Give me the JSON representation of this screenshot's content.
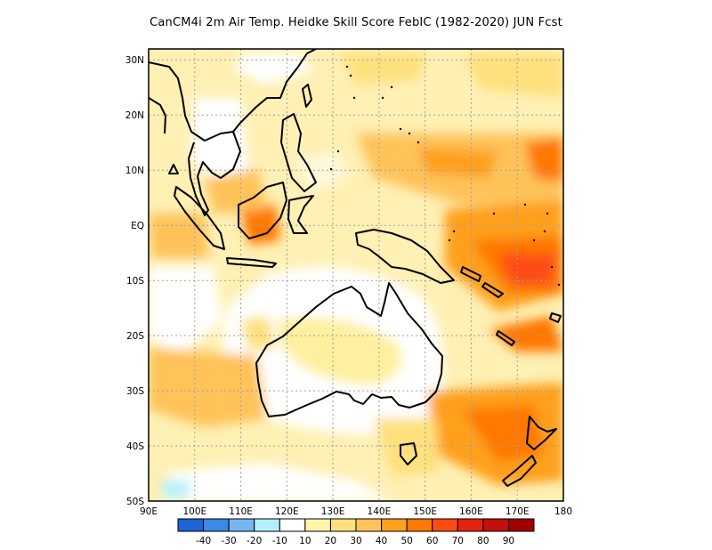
{
  "title": "CanCM4i  2m Air Temp. Heidke Skill Score FebIC (1982-2020) JUN Fcst",
  "map": {
    "lat_labels": [
      "30N",
      "20N",
      "10N",
      "EQ",
      "10S",
      "20S",
      "30S",
      "40S",
      "50S"
    ],
    "lon_labels": [
      "90E",
      "100E",
      "110E",
      "120E",
      "130E",
      "140E",
      "150E",
      "160E",
      "170E",
      "180"
    ],
    "lat_range": [
      -50,
      32
    ],
    "lon_range": [
      90,
      180
    ],
    "grid": "dotted",
    "coastline_color": "#000000"
  },
  "colorbar": {
    "labels": [
      "-40",
      "-30",
      "-20",
      "-10",
      "10",
      "20",
      "30",
      "40",
      "50",
      "60",
      "70",
      "80",
      "90"
    ],
    "colors": [
      "#1e64d7",
      "#3a8ae8",
      "#78b6f0",
      "#b4f0fa",
      "#ffffff",
      "#fff5aa",
      "#ffe07d",
      "#ffc35a",
      "#ffa01e",
      "#ff7800",
      "#ff4b14",
      "#e6230f",
      "#c30f0a",
      "#a00000"
    ]
  }
}
